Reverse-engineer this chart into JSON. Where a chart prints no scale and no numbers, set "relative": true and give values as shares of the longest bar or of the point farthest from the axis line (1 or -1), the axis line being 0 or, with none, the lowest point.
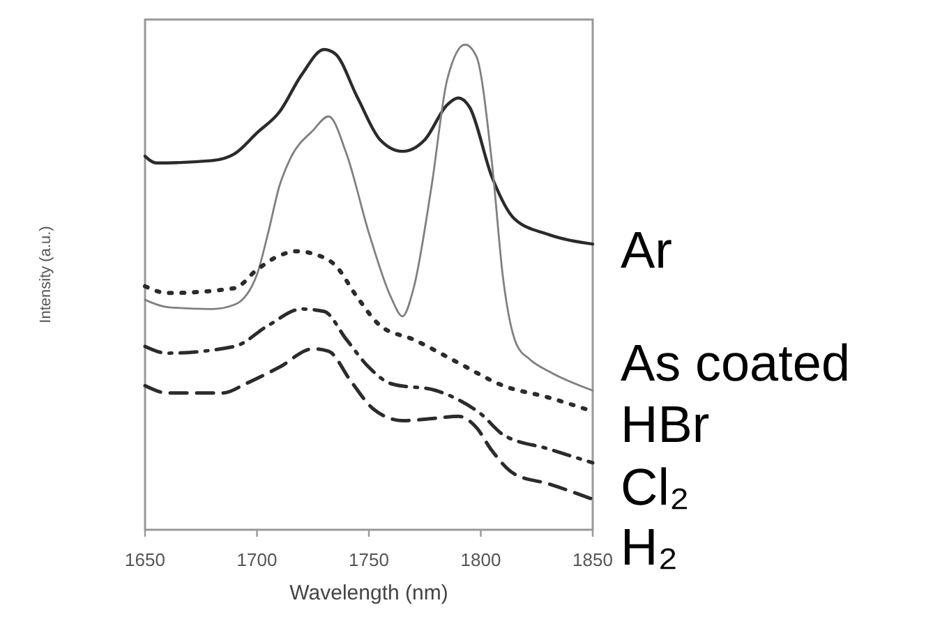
{
  "chart_data": {
    "type": "line",
    "xlabel": "Wavelength (nm)",
    "ylabel": "Intensity (a.u.)",
    "relative": true,
    "xlim": [
      1650,
      1850
    ],
    "xticks": [
      1650,
      1700,
      1750,
      1800,
      1850
    ],
    "series": [
      {
        "name": "Ar",
        "color": "#2b2b2b",
        "line_style": "solid",
        "x": [
          1650,
          1655,
          1680,
          1690,
          1700,
          1710,
          1720,
          1730,
          1735,
          1745,
          1755,
          1765,
          1775,
          1785,
          1790,
          1795,
          1805,
          1815,
          1830,
          1850
        ],
        "values": [
          0.77,
          0.756,
          0.761,
          0.775,
          0.818,
          0.861,
          0.938,
          0.99,
          0.981,
          0.89,
          0.804,
          0.78,
          0.804,
          0.876,
          0.89,
          0.871,
          0.727,
          0.641,
          0.609,
          0.589
        ]
      },
      {
        "name": "As coated",
        "color": "#808080",
        "line_style": "solid",
        "x": [
          1650,
          1660,
          1680,
          1690,
          1700,
          1705,
          1710,
          1715,
          1725,
          1732,
          1740,
          1750,
          1760,
          1765,
          1770,
          1778,
          1785,
          1793,
          1798,
          1805,
          1810,
          1816,
          1822,
          1831,
          1850
        ],
        "values": [
          0.474,
          0.459,
          0.455,
          0.464,
          0.526,
          0.612,
          0.708,
          0.766,
          0.823,
          0.852,
          0.775,
          0.612,
          0.478,
          0.44,
          0.498,
          0.708,
          0.928,
          1.0,
          0.976,
          0.756,
          0.517,
          0.382,
          0.351,
          0.325,
          0.287
        ]
      },
      {
        "name": "HBr",
        "color": "#2b2b2b",
        "line_style": "dotted",
        "x": [
          1650,
          1660,
          1690,
          1700,
          1710,
          1718,
          1725,
          1735,
          1745,
          1755,
          1770,
          1790,
          1810,
          1830,
          1850
        ],
        "values": [
          0.502,
          0.488,
          0.498,
          0.536,
          0.565,
          0.574,
          0.569,
          0.545,
          0.478,
          0.421,
          0.392,
          0.344,
          0.297,
          0.273,
          0.244
        ]
      },
      {
        "name": "Cl₂",
        "color": "#2b2b2b",
        "line_style": "dashdot",
        "x": [
          1650,
          1660,
          1690,
          1705,
          1720,
          1730,
          1740,
          1750,
          1760,
          1780,
          1790,
          1800,
          1810,
          1830,
          1850
        ],
        "values": [
          0.378,
          0.364,
          0.378,
          0.421,
          0.455,
          0.45,
          0.392,
          0.335,
          0.301,
          0.287,
          0.268,
          0.239,
          0.196,
          0.167,
          0.138
        ]
      },
      {
        "name": "H₂",
        "color": "#2b2b2b",
        "line_style": "dashed",
        "x": [
          1650,
          1660,
          1685,
          1695,
          1710,
          1725,
          1732,
          1742,
          1752,
          1765,
          1780,
          1790,
          1798,
          1805,
          1815,
          1830,
          1850
        ],
        "values": [
          0.297,
          0.282,
          0.282,
          0.301,
          0.335,
          0.373,
          0.368,
          0.306,
          0.249,
          0.225,
          0.23,
          0.234,
          0.211,
          0.163,
          0.115,
          0.095,
          0.063
        ]
      }
    ],
    "legend": false
  }
}
